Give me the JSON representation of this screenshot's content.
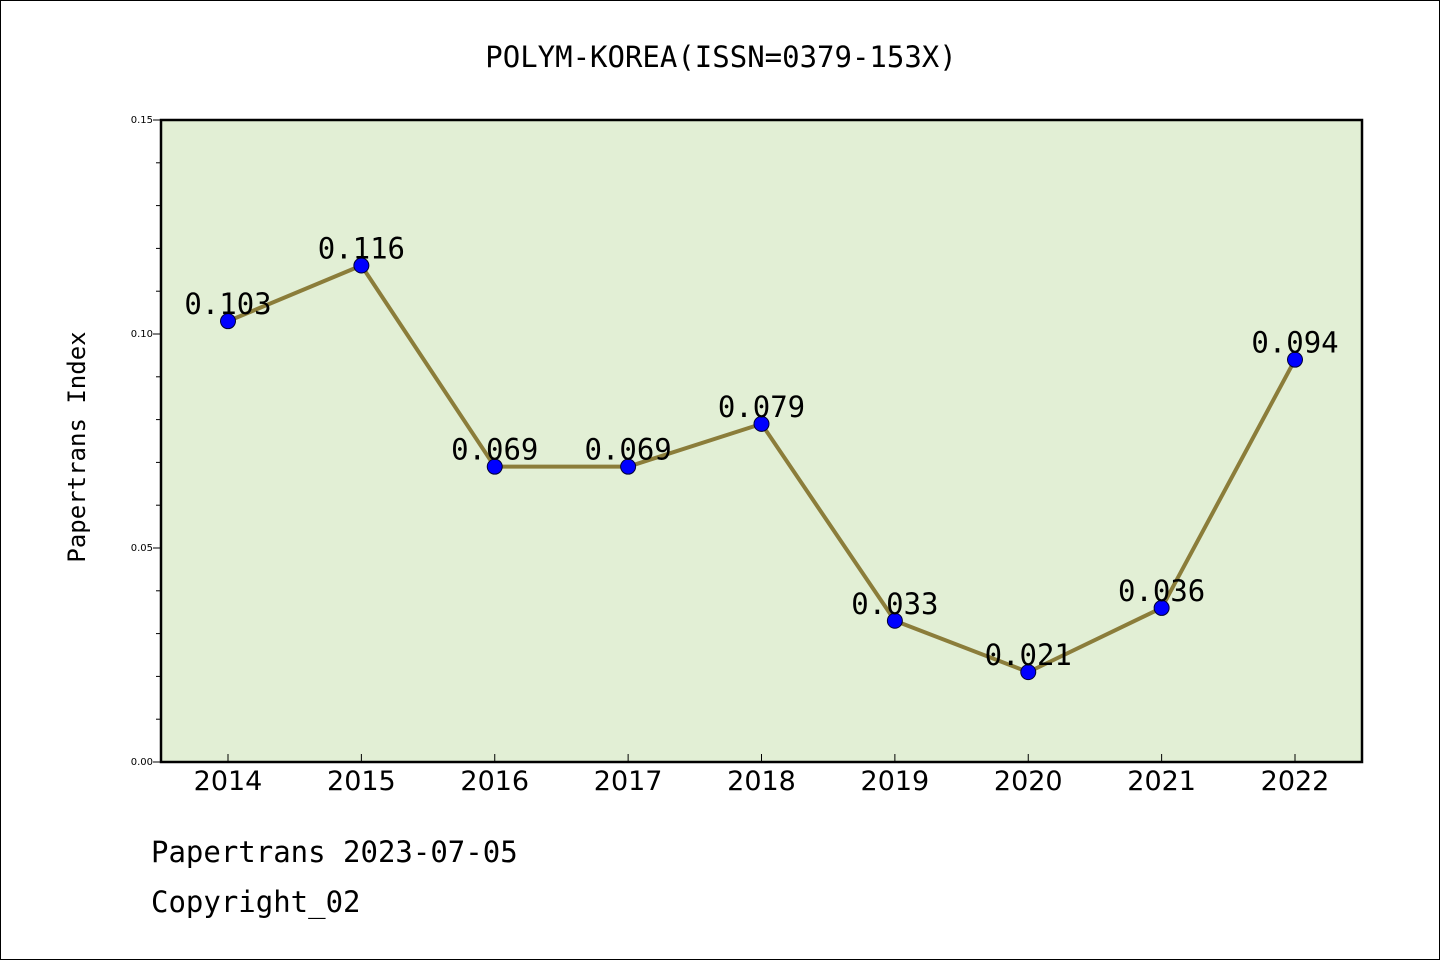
{
  "chart_data": {
    "type": "line",
    "title": "POLYM-KOREA(ISSN=0379-153X)",
    "ylabel": "Papertrans Index",
    "xlabel": "",
    "categories": [
      "2014",
      "2015",
      "2016",
      "2017",
      "2018",
      "2019",
      "2020",
      "2021",
      "2022"
    ],
    "values": [
      0.103,
      0.116,
      0.069,
      0.069,
      0.079,
      0.033,
      0.021,
      0.036,
      0.094
    ],
    "data_labels": [
      "0.103",
      "0.116",
      "0.069",
      "0.069",
      "0.079",
      "0.033",
      "0.021",
      "0.036",
      "0.094"
    ],
    "ylim": [
      0,
      0.15
    ],
    "yticks": [
      0.0,
      0.05,
      0.1,
      0.15
    ],
    "ytick_labels": [
      "0.00",
      "0.05",
      "0.10",
      "0.15"
    ],
    "grid": false,
    "colors": {
      "plot_background": "#e2efd5",
      "line": "#8b7d3a",
      "marker": "#0000ff"
    }
  },
  "footer": {
    "source": "Papertrans 2023-07-05",
    "copyright": "Copyright_02"
  }
}
